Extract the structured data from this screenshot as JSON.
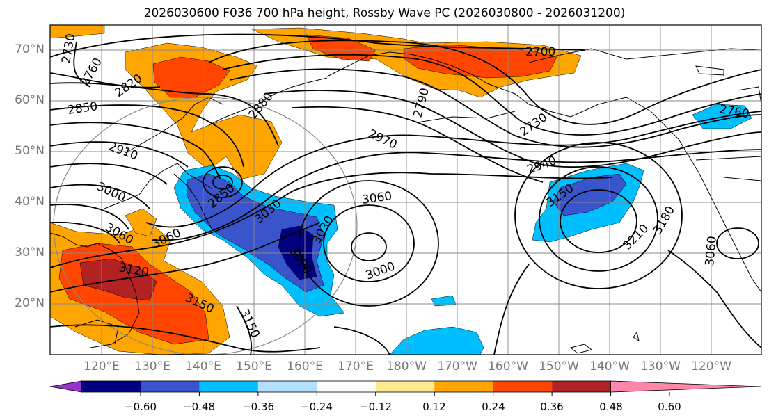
{
  "title": "2026030600 F036 700 hPa height, Rossby Wave PC (2026030800 - 2026031200)",
  "latitude_labels": [
    "70°N",
    "60°N",
    "50°N",
    "40°N",
    "30°N",
    "20°N"
  ],
  "longitude_labels": [
    "120°E",
    "130°E",
    "140°E",
    "150°E",
    "160°E",
    "170°E",
    "180°W",
    "170°W",
    "160°W",
    "150°W",
    "140°W",
    "130°W",
    "120°W"
  ],
  "contour_labels": [
    "2730",
    "2760",
    "2820",
    "2850",
    "2880",
    "2790",
    "2700",
    "2730",
    "2760",
    "2910",
    "2970",
    "2940",
    "3000",
    "3060",
    "3060",
    "3120",
    "3150",
    "3150",
    "2850",
    "3030",
    "3030",
    "3090",
    "3060",
    "3000",
    "3150",
    "3210",
    "3180",
    "3060"
  ],
  "colorbar": {
    "ticks": [
      "−0.60",
      "−0.48",
      "−0.36",
      "−0.24",
      "−0.12",
      "0.12",
      "0.24",
      "0.36",
      "0.48",
      "0.60"
    ],
    "colors": [
      "#9933cc",
      "#000080",
      "#3a55cc",
      "#00bfff",
      "#b2e0ff",
      "#ffffff",
      "#ffea90",
      "#ffa500",
      "#ff4500",
      "#b22222",
      "#ff88aa"
    ]
  },
  "fill_colors": {
    "n048": "#000080",
    "n036": "#3a55cc",
    "n024": "#00bfff",
    "p024": "#ffa500",
    "p036": "#ff4500",
    "p048": "#b22222"
  }
}
